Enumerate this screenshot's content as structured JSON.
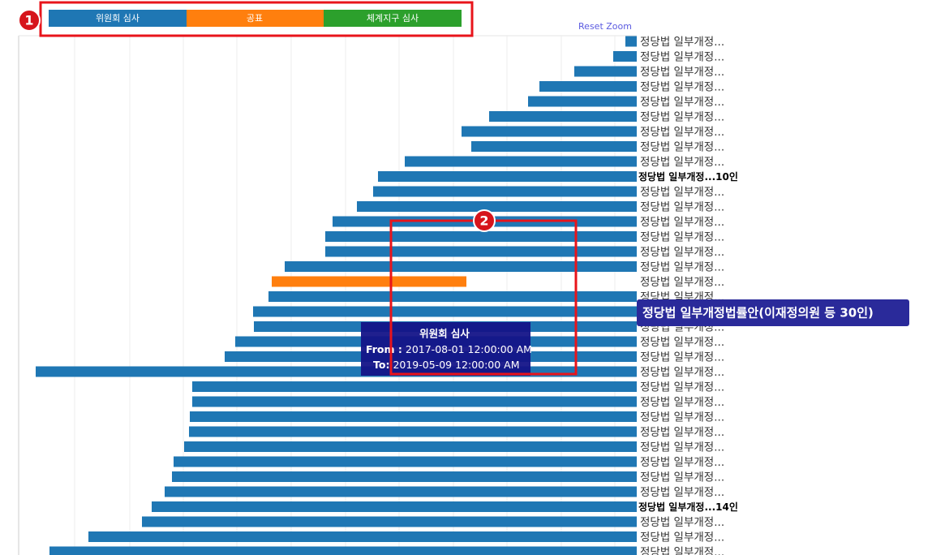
{
  "legend": {
    "items": [
      "위원회 심사",
      "공표",
      "체계지구 심사"
    ]
  },
  "reset_zoom": "Reset Zoom",
  "rows": [
    "정당법 일부개정...",
    "정당법 일부개정...",
    "정당법 일부개정...",
    "정당법 일부개정...",
    "정당법 일부개정...",
    "정당법 일부개정...",
    "정당법 일부개정...",
    "정당법 일부개정...",
    "정당법 일부개정...",
    "정당법 일부개정...10인",
    "정당법 일부개정...",
    "정당법 일부개정...",
    "정당법 일부개정...",
    "정당법 일부개정...",
    "정당법 일부개정...",
    "정당법 일부개정...",
    "정당법 일부개정...",
    "정당법 일부개정...",
    "정당법 일부개정...",
    "정당법 일부개정...",
    "정당법 일부개정...",
    "정당법 일부개정...",
    "정당법 일부개정...",
    "정당법 일부개정...",
    "정당법 일부개정...",
    "정당법 일부개정...",
    "정당법 일부개정...",
    "정당법 일부개정...",
    "정당법 일부개정...",
    "정당법 일부개정...",
    "정당법 일부개정...",
    "정당법 일부개정...14인",
    "정당법 일부개정...",
    "정당법 일부개정...",
    "정당법 일부개정..."
  ],
  "hover_label": "정당법 일부개정법률안(이재정의원 등 30인)",
  "tooltip": {
    "title": "위원회 심사",
    "from_label": "From :",
    "from_value": "2017-08-01 12:00:00 AM",
    "to_label": "To:",
    "to_value": "2019-05-09 12:00:00 AM"
  },
  "annotations": [
    "1",
    "2"
  ]
}
